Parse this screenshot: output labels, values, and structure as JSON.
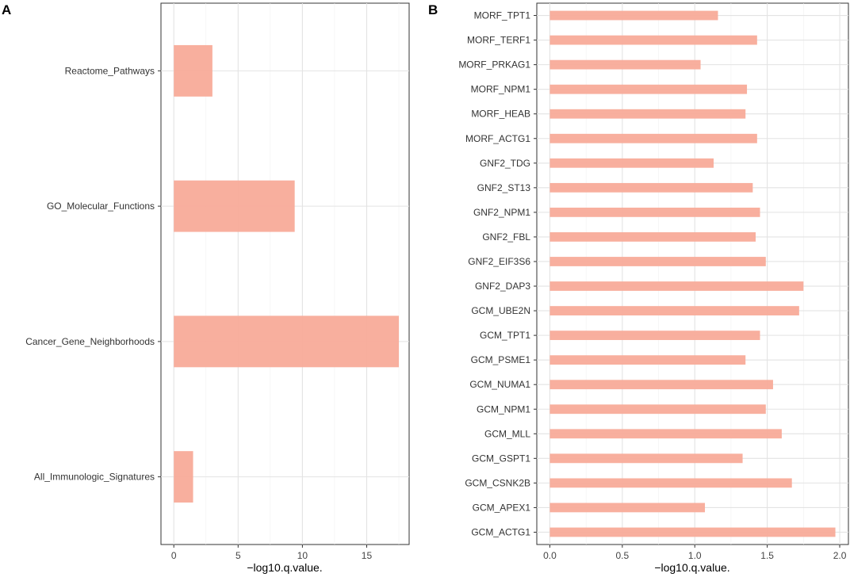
{
  "chart_data": [
    {
      "panel_label": "A",
      "type": "bar",
      "orientation": "horizontal",
      "categories": [
        "Reactome_Pathways",
        "GO_Molecular_Functions",
        "Cancer_Gene_Neighborhoods",
        "All_Immunologic_Signatures"
      ],
      "values": [
        3.0,
        9.4,
        17.5,
        1.5
      ],
      "xlabel": "−log10.q.value.",
      "ylabel": "",
      "xlim": [
        -1.0,
        18.3
      ],
      "xticks": [
        0,
        5,
        10,
        15
      ],
      "grid": true,
      "bar_color": "#f8ab99"
    },
    {
      "panel_label": "B",
      "type": "bar",
      "orientation": "horizontal",
      "categories": [
        "MORF_TPT1",
        "MORF_TERF1",
        "MORF_PRKAG1",
        "MORF_NPM1",
        "MORF_HEAB",
        "MORF_ACTG1",
        "GNF2_TDG",
        "GNF2_ST13",
        "GNF2_NPM1",
        "GNF2_FBL",
        "GNF2_EIF3S6",
        "GNF2_DAP3",
        "GCM_UBE2N",
        "GCM_TPT1",
        "GCM_PSME1",
        "GCM_NUMA1",
        "GCM_NPM1",
        "GCM_MLL",
        "GCM_GSPT1",
        "GCM_CSNK2B",
        "GCM_APEX1",
        "GCM_ACTG1"
      ],
      "values": [
        1.16,
        1.43,
        1.04,
        1.36,
        1.35,
        1.43,
        1.13,
        1.4,
        1.45,
        1.42,
        1.49,
        1.75,
        1.72,
        1.45,
        1.35,
        1.54,
        1.49,
        1.6,
        1.33,
        1.67,
        1.07,
        1.97
      ],
      "xlabel": "−log10.q.value.",
      "ylabel": "",
      "xlim": [
        -0.09,
        2.06
      ],
      "xticks": [
        0.0,
        0.5,
        1.0,
        1.5,
        2.0
      ],
      "xtick_labels": [
        "0.0",
        "0.5",
        "1.0",
        "1.5",
        "2.0"
      ],
      "grid": true,
      "bar_color": "#f8ab99"
    }
  ]
}
